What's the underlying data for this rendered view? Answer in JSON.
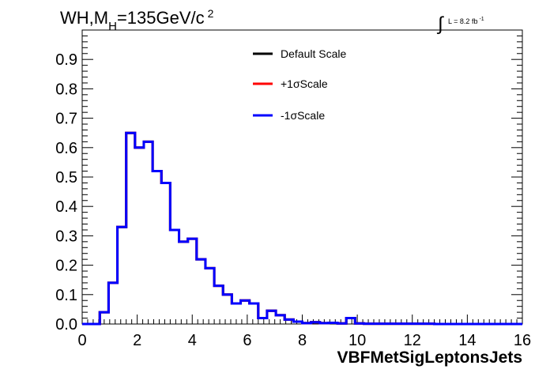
{
  "chart_data": {
    "type": "histogram",
    "title_main": "WH,M",
    "title_sub": "H",
    "title_rest": "=135GeV/c",
    "title_sup": "2",
    "lumi_label": "L = 8.2 fb",
    "lumi_sup": "-1",
    "xlabel": "VBFMetSigLeptonsJets",
    "xlim": [
      0,
      16
    ],
    "ylim": [
      0,
      1.0
    ],
    "x_ticks": [
      "0",
      "2",
      "4",
      "6",
      "8",
      "10",
      "12",
      "14",
      "16"
    ],
    "y_ticks": [
      "0.0",
      "0.1",
      "0.2",
      "0.3",
      "0.4",
      "0.5",
      "0.6",
      "0.7",
      "0.8",
      "0.9"
    ],
    "bin_width": 0.32,
    "series": [
      {
        "name": "Default Scale",
        "color": "#000000",
        "values": [
          0,
          0,
          0.04,
          0.14,
          0.33,
          0.65,
          0.6,
          0.62,
          0.52,
          0.48,
          0.32,
          0.28,
          0.29,
          0.22,
          0.19,
          0.13,
          0.1,
          0.07,
          0.08,
          0.07,
          0.02,
          0.045,
          0.03,
          0.015,
          0.008,
          0.003,
          0.006,
          0.003,
          0.004,
          0.002,
          0.02,
          0.002,
          0.001,
          0.001,
          0.001,
          0.001,
          0.001,
          0.001,
          0.001,
          0.001,
          0,
          0,
          0,
          0,
          0,
          0,
          0,
          0,
          0,
          0
        ]
      },
      {
        "name": "+1σScale",
        "color": "#ff0000",
        "values": [
          0,
          0,
          0.04,
          0.14,
          0.33,
          0.65,
          0.6,
          0.62,
          0.52,
          0.48,
          0.32,
          0.28,
          0.29,
          0.22,
          0.19,
          0.13,
          0.1,
          0.07,
          0.08,
          0.07,
          0.02,
          0.045,
          0.03,
          0.015,
          0.008,
          0.003,
          0.006,
          0.003,
          0.004,
          0.002,
          0.02,
          0.002,
          0.001,
          0.001,
          0.001,
          0.001,
          0.001,
          0.001,
          0.001,
          0.001,
          0,
          0,
          0,
          0,
          0,
          0,
          0,
          0,
          0,
          0
        ]
      },
      {
        "name": "-1σScale",
        "color": "#0000ff",
        "values": [
          0,
          0,
          0.04,
          0.14,
          0.33,
          0.65,
          0.6,
          0.62,
          0.52,
          0.48,
          0.32,
          0.28,
          0.29,
          0.22,
          0.19,
          0.13,
          0.1,
          0.07,
          0.08,
          0.07,
          0.02,
          0.045,
          0.03,
          0.015,
          0.008,
          0.003,
          0.006,
          0.003,
          0.004,
          0.002,
          0.02,
          0.002,
          0.001,
          0.001,
          0.001,
          0.001,
          0.001,
          0.001,
          0.001,
          0.001,
          0,
          0,
          0,
          0,
          0,
          0,
          0,
          0,
          0,
          0
        ]
      }
    ]
  }
}
